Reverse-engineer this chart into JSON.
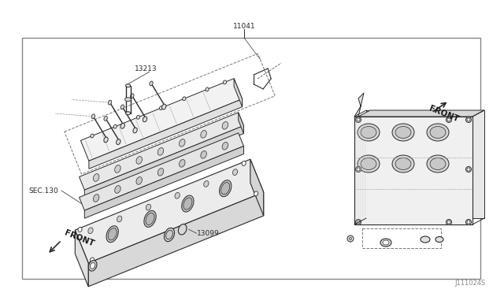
{
  "bg_color": "#ffffff",
  "border_color": "#777777",
  "line_color": "#2a2a2a",
  "dashed_color": "#555555",
  "light_line": "#999999",
  "label_11041": "13213",
  "label_part2": "11041",
  "label_11099": "13099",
  "label_sec130": "SEC.130",
  "label_front_left": "FRONT",
  "label_front_right": "FRONT",
  "label_bottom_right": "J111024S",
  "text_color": "#1a1a1a",
  "fig_width": 6.4,
  "fig_height": 3.72,
  "dpi": 100
}
